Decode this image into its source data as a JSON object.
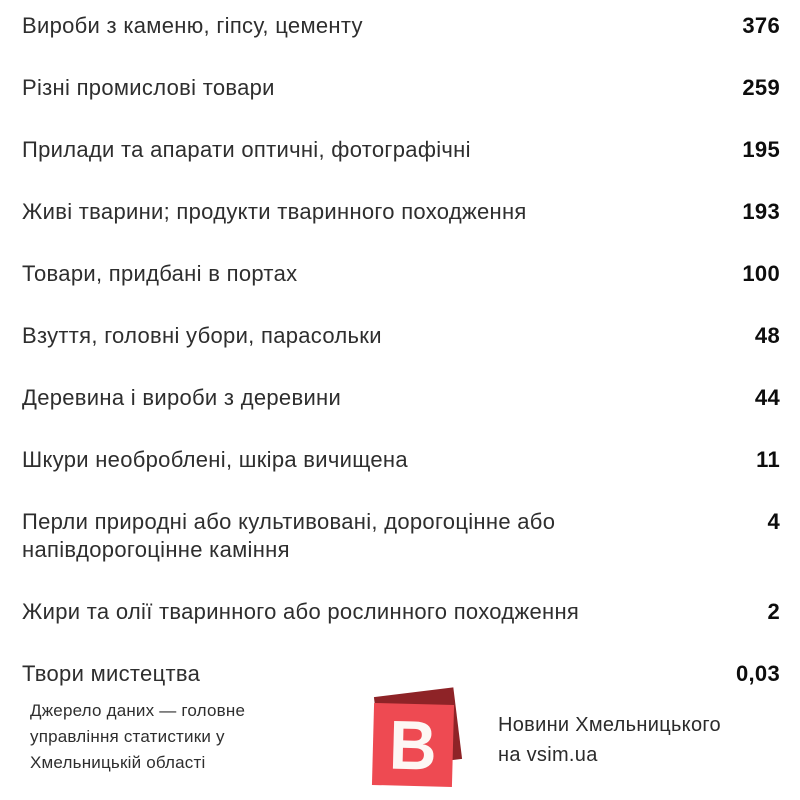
{
  "chart_data": {
    "type": "table",
    "title": "",
    "categories": [
      "Вироби з каменю, гіпсу, цементу",
      "Різні промислові товари",
      "Прилади та апарати оптичні, фотографічні",
      "Живі тварини; продукти тваринного походження",
      "Товари, придбані в портах",
      "Взуття, головні убори, парасольки",
      "Деревина і вироби з деревини",
      "Шкури необроблені, шкіра вичищена",
      "Перли природні або культивовані, дорогоцінне або напівдорогоцінне каміння",
      "Жири та олії тваринного або рослинного походження",
      "Твори мистецтва"
    ],
    "values": [
      376,
      259,
      195,
      193,
      100,
      48,
      44,
      11,
      4,
      2,
      0.03
    ],
    "value_labels": [
      "376",
      "259",
      "195",
      "193",
      "100",
      "48",
      "44",
      "11",
      "4",
      "2",
      "0,03"
    ]
  },
  "footer": {
    "source_note": "Джерело даних — головне\nуправління статистики у\nХмельницькій області",
    "brand_letter": "В",
    "site_note": "Новини Хмельницького\nна vsim.ua"
  },
  "colors": {
    "background": "#ffffff",
    "label_text": "#2e2e2e",
    "value_text": "#0d0d0d",
    "logo_red": "#ee4a52",
    "logo_dark_red": "#8e2327"
  }
}
